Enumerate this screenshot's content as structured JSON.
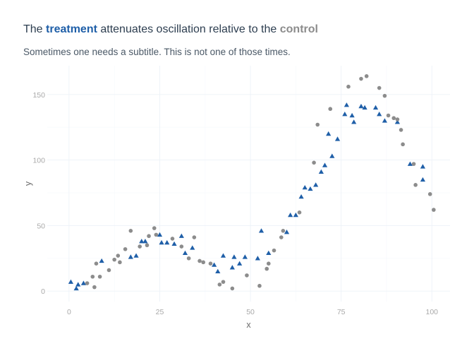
{
  "title": {
    "prefix": "The ",
    "treatment": "treatment",
    "middle": " attenuates oscillation relative to the ",
    "control": "control"
  },
  "subtitle": "Sometimes one needs a subtitle. This is not one of those times.",
  "colors": {
    "title": "#2d3e50",
    "treatment": "#1f5fa8",
    "control": "#8c8c8c",
    "grid": "#edf2f8",
    "tick": "#a9a9a9"
  },
  "chart_data": {
    "type": "scatter",
    "xlabel": "x",
    "ylabel": "y",
    "xlim": [
      -6,
      105
    ],
    "ylim": [
      -8,
      172
    ],
    "xticks": [
      0,
      25,
      50,
      75,
      100
    ],
    "xtick_labels": [
      "0",
      "25",
      "50",
      "75",
      "100"
    ],
    "yticks": [
      0,
      50,
      100,
      150
    ],
    "ytick_labels": [
      "0",
      "50",
      "100",
      "150"
    ],
    "grid": true,
    "legend": "none",
    "series": [
      {
        "name": "treatment",
        "marker": "triangle",
        "color": "#1f5fa8",
        "points": [
          [
            0.5,
            7
          ],
          [
            2,
            2
          ],
          [
            2.5,
            5
          ],
          [
            4,
            6
          ],
          [
            9,
            23
          ],
          [
            17,
            26
          ],
          [
            18.5,
            27
          ],
          [
            20,
            38
          ],
          [
            21,
            38
          ],
          [
            25,
            43
          ],
          [
            25.5,
            37
          ],
          [
            27,
            37
          ],
          [
            29,
            36
          ],
          [
            31,
            42
          ],
          [
            32,
            29
          ],
          [
            34,
            33
          ],
          [
            40,
            20
          ],
          [
            41,
            15
          ],
          [
            42.5,
            27
          ],
          [
            45,
            18
          ],
          [
            45.5,
            26
          ],
          [
            47,
            21
          ],
          [
            48.5,
            26
          ],
          [
            52,
            25
          ],
          [
            53,
            46
          ],
          [
            55,
            29
          ],
          [
            60,
            45
          ],
          [
            61,
            58
          ],
          [
            62.5,
            58
          ],
          [
            64,
            72
          ],
          [
            65,
            79
          ],
          [
            66.5,
            78
          ],
          [
            68,
            81
          ],
          [
            69.5,
            91
          ],
          [
            70.5,
            96
          ],
          [
            71.5,
            120
          ],
          [
            72.5,
            103
          ],
          [
            74,
            116
          ],
          [
            76,
            135
          ],
          [
            76.5,
            142
          ],
          [
            78,
            134
          ],
          [
            78.5,
            129
          ],
          [
            80.5,
            141
          ],
          [
            81.5,
            140
          ],
          [
            84.5,
            140
          ],
          [
            85.5,
            135
          ],
          [
            87,
            130
          ],
          [
            90.5,
            129
          ],
          [
            94,
            97
          ],
          [
            97.5,
            85
          ],
          [
            97.5,
            95
          ]
        ]
      },
      {
        "name": "control",
        "marker": "circle",
        "color": "#8c8c8c",
        "points": [
          [
            5,
            6
          ],
          [
            6.5,
            11
          ],
          [
            7,
            3
          ],
          [
            7.5,
            21
          ],
          [
            8.5,
            11
          ],
          [
            11,
            16
          ],
          [
            12.5,
            24
          ],
          [
            13.5,
            27
          ],
          [
            14,
            22
          ],
          [
            15.5,
            32
          ],
          [
            17,
            46
          ],
          [
            19.5,
            34
          ],
          [
            21.5,
            35
          ],
          [
            22,
            42
          ],
          [
            23.5,
            48
          ],
          [
            24,
            43
          ],
          [
            28.5,
            40
          ],
          [
            31,
            34
          ],
          [
            33,
            25
          ],
          [
            34.5,
            41
          ],
          [
            36,
            23
          ],
          [
            37,
            22
          ],
          [
            39,
            21
          ],
          [
            41.5,
            5
          ],
          [
            42.5,
            7
          ],
          [
            45,
            2
          ],
          [
            49,
            12
          ],
          [
            52.5,
            4
          ],
          [
            54.5,
            17
          ],
          [
            55,
            21
          ],
          [
            56.5,
            31
          ],
          [
            58.5,
            41
          ],
          [
            59,
            46
          ],
          [
            63.5,
            60
          ],
          [
            67.5,
            98
          ],
          [
            68.5,
            127
          ],
          [
            72,
            139
          ],
          [
            77,
            156
          ],
          [
            80.5,
            162
          ],
          [
            82,
            164
          ],
          [
            85.5,
            155
          ],
          [
            87,
            149
          ],
          [
            88,
            134
          ],
          [
            89.5,
            132
          ],
          [
            90.5,
            131
          ],
          [
            91.5,
            123
          ],
          [
            92,
            112
          ],
          [
            95,
            97
          ],
          [
            95.5,
            81
          ],
          [
            99.5,
            74
          ],
          [
            100.5,
            62
          ]
        ]
      }
    ]
  }
}
